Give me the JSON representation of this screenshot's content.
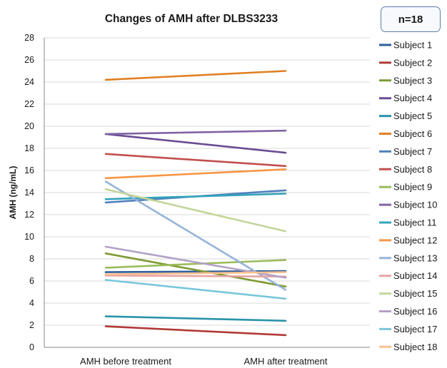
{
  "n_box": {
    "label": "n=18"
  },
  "chart_data": {
    "type": "line",
    "title": "Changes of AMH after DLBS3233",
    "xlabel": "",
    "ylabel": "AMH (ng/mL)",
    "categories": [
      "AMH  before treatment",
      "AMH after treatment"
    ],
    "ylim": [
      0,
      28
    ],
    "yticks": [
      0,
      2,
      4,
      6,
      8,
      10,
      12,
      14,
      16,
      18,
      20,
      22,
      24,
      26,
      28
    ],
    "grid": true,
    "legend": "right",
    "series": [
      {
        "name": "Subject 1",
        "values": [
          6.8,
          6.9
        ],
        "color": "#2e5f9e"
      },
      {
        "name": "Subject 2",
        "values": [
          1.9,
          1.1
        ],
        "color": "#b03a36"
      },
      {
        "name": "Subject 3",
        "values": [
          8.5,
          5.5
        ],
        "color": "#7c9a34"
      },
      {
        "name": "Subject 4",
        "values": [
          19.3,
          17.6
        ],
        "color": "#6a4c93"
      },
      {
        "name": "Subject 5",
        "values": [
          2.8,
          2.4
        ],
        "color": "#2a93aa"
      },
      {
        "name": "Subject 6",
        "values": [
          24.2,
          25.0
        ],
        "color": "#e07f22"
      },
      {
        "name": "Subject 7",
        "values": [
          13.1,
          14.2
        ],
        "color": "#4f81bd"
      },
      {
        "name": "Subject 8",
        "values": [
          17.5,
          16.4
        ],
        "color": "#c0504d"
      },
      {
        "name": "Subject 9",
        "values": [
          7.2,
          7.9
        ],
        "color": "#9bbb59"
      },
      {
        "name": "Subject 10",
        "values": [
          19.3,
          19.6
        ],
        "color": "#8064a2"
      },
      {
        "name": "Subject 11",
        "values": [
          13.4,
          13.9
        ],
        "color": "#34a3b9"
      },
      {
        "name": "Subject 12",
        "values": [
          15.3,
          16.1
        ],
        "color": "#f79646"
      },
      {
        "name": "Subject 13",
        "values": [
          15.0,
          5.2
        ],
        "color": "#95b3d7"
      },
      {
        "name": "Subject 14",
        "values": [
          6.5,
          6.4
        ],
        "color": "#e6a3a1"
      },
      {
        "name": "Subject 15",
        "values": [
          14.3,
          10.5
        ],
        "color": "#c3d69b"
      },
      {
        "name": "Subject 16",
        "values": [
          9.1,
          6.3
        ],
        "color": "#b3a2c7"
      },
      {
        "name": "Subject 17",
        "values": [
          6.1,
          4.4
        ],
        "color": "#79c6d9"
      },
      {
        "name": "Subject 18",
        "values": [
          6.6,
          6.8
        ],
        "color": "#fac08f"
      }
    ]
  }
}
